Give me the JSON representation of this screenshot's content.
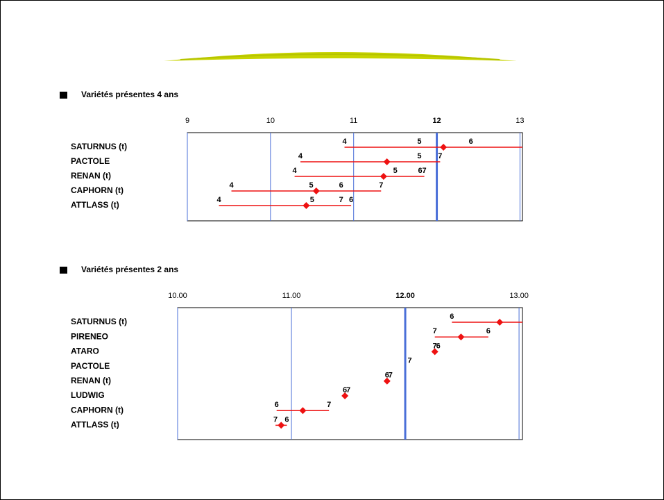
{
  "chart_data": [
    {
      "type": "range",
      "title": "Variétés présentes 4 ans",
      "xlim": [
        9,
        13.03
      ],
      "xticks": [
        9,
        10,
        11,
        12,
        13
      ],
      "reference": 12,
      "color": "#ee1111",
      "grid_color": "#4a6fd8",
      "rows": [
        {
          "name": "SATURNUS (t)",
          "min": 10.89,
          "max": 13.03,
          "mean": 12.08,
          "points": [
            {
              "year": 4,
              "value": 10.89
            },
            {
              "year": 5,
              "value": 11.79
            },
            {
              "year": 6,
              "value": 12.41
            }
          ]
        },
        {
          "name": "PACTOLE",
          "min": 10.36,
          "max": 12.04,
          "mean": 11.4,
          "points": [
            {
              "year": 4,
              "value": 10.36
            },
            {
              "year": 5,
              "value": 11.79
            },
            {
              "year": 7,
              "value": 12.04
            }
          ]
        },
        {
          "name": "RENAN (t)",
          "min": 10.29,
          "max": 11.85,
          "mean": 11.36,
          "points": [
            {
              "year": 4,
              "value": 10.29
            },
            {
              "year": 5,
              "value": 11.5
            },
            {
              "year": 6,
              "value": 11.8
            },
            {
              "year": 7,
              "value": 11.85
            }
          ]
        },
        {
          "name": "CAPHORN (t)",
          "min": 9.53,
          "max": 11.33,
          "mean": 10.55,
          "points": [
            {
              "year": 4,
              "value": 9.53
            },
            {
              "year": 5,
              "value": 10.49
            },
            {
              "year": 6,
              "value": 10.85
            },
            {
              "year": 7,
              "value": 11.33
            }
          ]
        },
        {
          "name": "ATTLASS (t)",
          "min": 9.38,
          "max": 10.97,
          "mean": 10.43,
          "points": [
            {
              "year": 4,
              "value": 9.38
            },
            {
              "year": 5,
              "value": 10.5
            },
            {
              "year": 7,
              "value": 10.85
            },
            {
              "year": 6,
              "value": 10.97
            }
          ]
        }
      ]
    },
    {
      "type": "range",
      "title": "Variétés présentes 2 ans",
      "xlim": [
        10,
        13.03
      ],
      "xticks": [
        {
          "value": 10,
          "label": "10.00"
        },
        {
          "value": 11,
          "label": "11.00"
        },
        {
          "value": 12,
          "label": "12.00"
        },
        {
          "value": 13,
          "label": "13.00"
        }
      ],
      "reference": 12,
      "color": "#ee1111",
      "grid_color": "#4a6fd8",
      "rows": [
        {
          "name": "SATURNUS (t)",
          "min": 12.41,
          "max": 13.03,
          "mean": 12.83,
          "points": [
            {
              "year": 6,
              "value": 12.41
            }
          ]
        },
        {
          "name": "PIRENEO",
          "min": 12.26,
          "max": 12.73,
          "mean": 12.49,
          "points": [
            {
              "year": 7,
              "value": 12.26
            },
            {
              "year": 6,
              "value": 12.73
            }
          ]
        },
        {
          "name": "ATARO",
          "min": 12.26,
          "max": 12.26,
          "mean": 12.26,
          "points": [
            {
              "year": 7,
              "value": 12.26
            },
            {
              "year": 6,
              "value": 12.26
            }
          ]
        },
        {
          "name": "PACTOLE",
          "min": null,
          "max": null,
          "mean": null,
          "points": [
            {
              "year": 7,
              "value": 12.04
            }
          ]
        },
        {
          "name": "RENAN (t)",
          "min": 11.84,
          "max": 11.84,
          "mean": 11.84,
          "points": [
            {
              "year": 6,
              "value": 11.84
            },
            {
              "year": 7,
              "value": 11.84
            }
          ]
        },
        {
          "name": "LUDWIG",
          "min": 11.47,
          "max": 11.47,
          "mean": 11.47,
          "points": [
            {
              "year": 6,
              "value": 11.47
            },
            {
              "year": 7,
              "value": 11.47
            }
          ]
        },
        {
          "name": "CAPHORN (t)",
          "min": 10.87,
          "max": 11.33,
          "mean": 11.1,
          "points": [
            {
              "year": 6,
              "value": 10.87
            },
            {
              "year": 7,
              "value": 11.33
            }
          ]
        },
        {
          "name": "ATTLASS (t)",
          "min": 10.86,
          "max": 10.96,
          "mean": 10.91,
          "points": [
            {
              "year": 7,
              "value": 10.86
            },
            {
              "year": 6,
              "value": 10.96
            }
          ]
        }
      ]
    }
  ]
}
